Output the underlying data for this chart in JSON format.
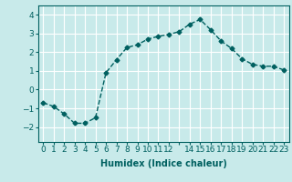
{
  "x": [
    0,
    1,
    2,
    3,
    4,
    5,
    6,
    7,
    8,
    9,
    10,
    11,
    12,
    13,
    14,
    15,
    16,
    17,
    18,
    19,
    20,
    21,
    22,
    23
  ],
  "y": [
    -0.7,
    -0.9,
    -1.3,
    -1.8,
    -1.8,
    -1.5,
    0.9,
    1.6,
    2.25,
    2.4,
    2.7,
    2.85,
    2.95,
    3.1,
    3.5,
    3.75,
    3.2,
    2.6,
    2.2,
    1.65,
    1.35,
    1.25,
    1.25,
    1.05
  ],
  "line_color": "#006060",
  "marker": "D",
  "marker_size": 2.5,
  "bg_color": "#c8eaea",
  "grid_color": "#ffffff",
  "xlabel": "Humidex (Indice chaleur)",
  "xlabel_fontsize": 7,
  "yticks": [
    -2,
    -1,
    0,
    1,
    2,
    3,
    4
  ],
  "xtick_labels": [
    "0",
    "1",
    "2",
    "3",
    "4",
    "5",
    "6",
    "7",
    "8",
    "9",
    "10",
    "11",
    "12",
    "",
    "14",
    "15",
    "16",
    "17",
    "18",
    "19",
    "20",
    "21",
    "22",
    "23"
  ],
  "xlim": [
    -0.5,
    23.5
  ],
  "ylim": [
    -2.8,
    4.5
  ],
  "tick_fontsize": 6.5,
  "line_width": 1.0
}
